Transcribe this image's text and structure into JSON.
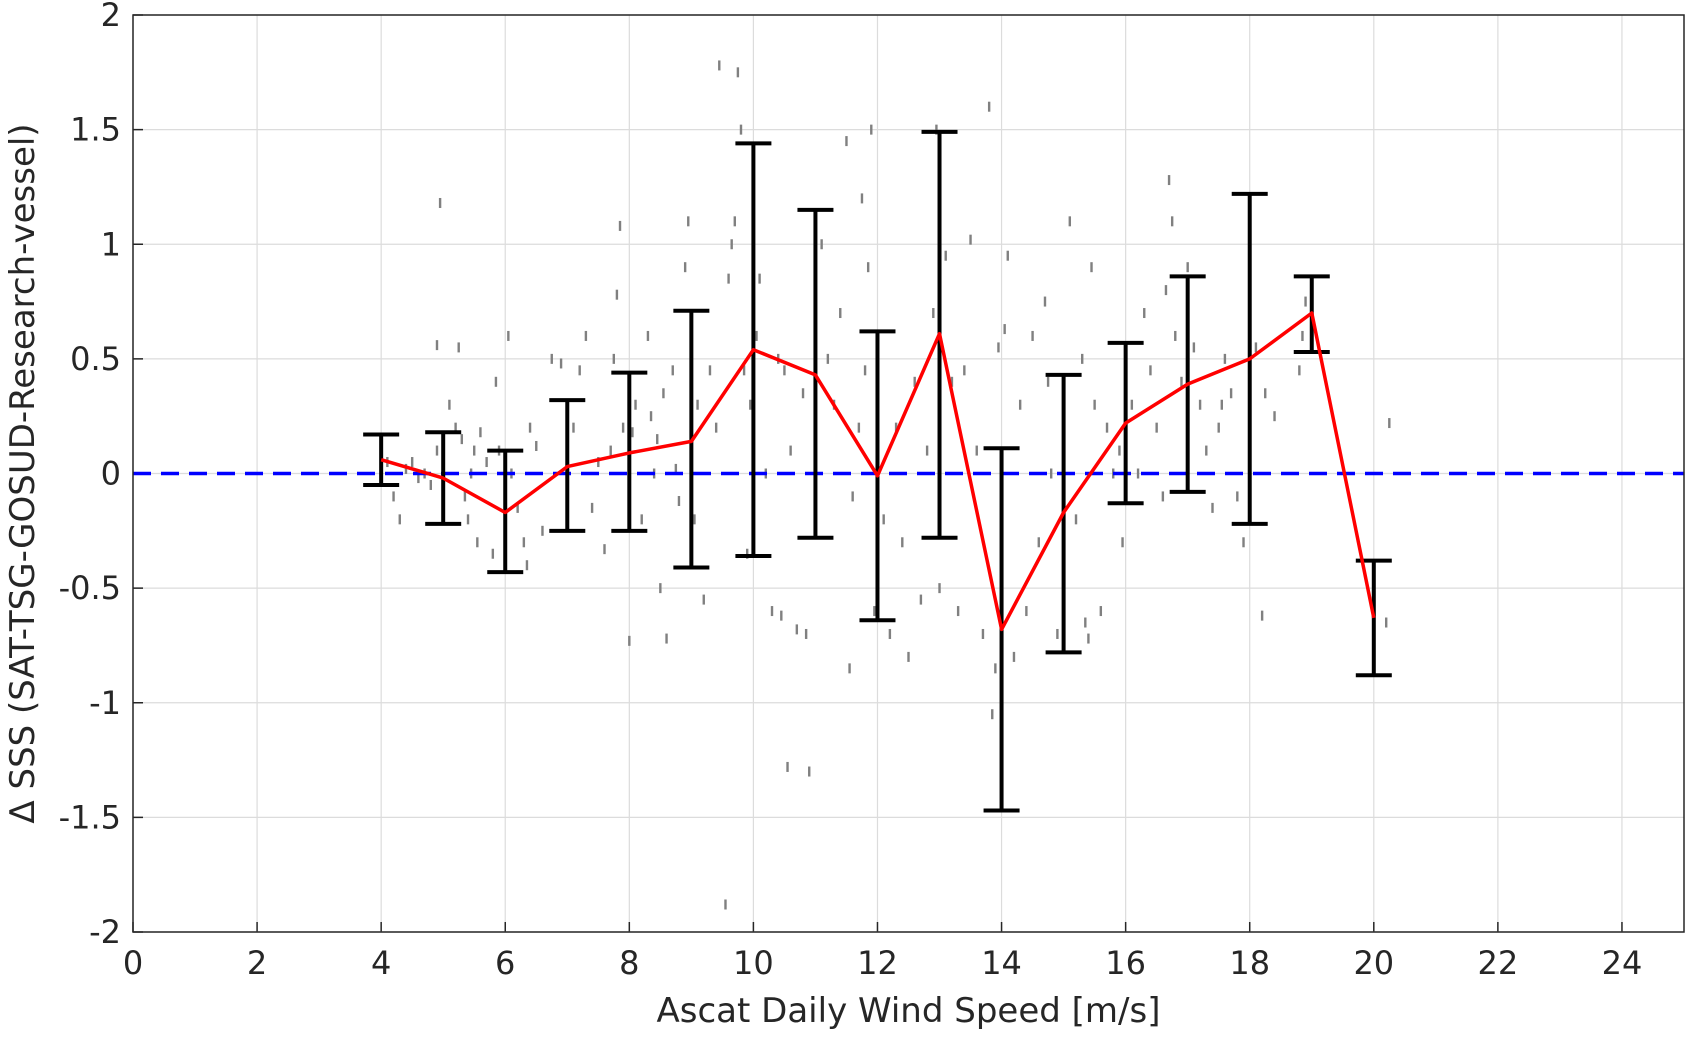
{
  "chart_data": {
    "type": "line",
    "xlabel": "Ascat Daily Wind Speed [m/s]",
    "ylabel": "Δ SSS (SAT-TSG-GOSUD-Research-vessel)",
    "xlim": [
      0,
      25
    ],
    "ylim": [
      -2,
      2
    ],
    "xticks": [
      0,
      2,
      4,
      6,
      8,
      10,
      12,
      14,
      16,
      18,
      20,
      22,
      24
    ],
    "yticks": [
      -2,
      -1.5,
      -1,
      -0.5,
      0,
      0.5,
      1,
      1.5,
      2
    ],
    "ytick_labels": [
      "-2",
      "-1.5",
      "-1",
      "-0.5",
      "0",
      "0.5",
      "1",
      "1.5",
      "2"
    ],
    "grid": true,
    "colors": {
      "scatter": "#808080",
      "mean": "#ff0000",
      "errorbar": "#000000",
      "zero_line": "#0000ff"
    },
    "series": [
      {
        "type": "errorbar-line",
        "x": [
          4,
          5,
          6,
          7,
          8,
          9,
          10,
          11,
          12,
          13,
          14,
          15,
          16,
          17,
          18,
          19,
          20
        ],
        "mean": [
          0.06,
          -0.02,
          -0.17,
          0.03,
          0.09,
          0.14,
          0.54,
          0.43,
          -0.01,
          0.61,
          -0.68,
          -0.17,
          0.22,
          0.39,
          0.5,
          0.7,
          -0.63
        ],
        "lower": [
          -0.05,
          -0.22,
          -0.43,
          -0.25,
          -0.25,
          -0.41,
          -0.36,
          -0.28,
          -0.64,
          -0.28,
          -1.47,
          -0.78,
          -0.13,
          -0.08,
          -0.22,
          0.53,
          -0.88
        ],
        "upper": [
          0.17,
          0.18,
          0.1,
          0.32,
          0.44,
          0.71,
          1.44,
          1.15,
          0.62,
          1.49,
          0.11,
          0.43,
          0.57,
          0.86,
          1.22,
          0.86,
          -0.38
        ]
      },
      {
        "type": "reference-line",
        "y": 0
      },
      {
        "type": "scatter",
        "points": [
          [
            4.1,
            0.05
          ],
          [
            4.2,
            -0.1
          ],
          [
            4.3,
            -0.2
          ],
          [
            4.4,
            0.02
          ],
          [
            4.5,
            0.05
          ],
          [
            4.6,
            -0.02
          ],
          [
            4.7,
            0.0
          ],
          [
            4.8,
            -0.05
          ],
          [
            4.9,
            0.1
          ],
          [
            4.95,
            1.18
          ],
          [
            4.9,
            0.56
          ],
          [
            5.1,
            0.3
          ],
          [
            5.2,
            0.2
          ],
          [
            5.25,
            0.55
          ],
          [
            5.3,
            0.15
          ],
          [
            5.35,
            -0.1
          ],
          [
            5.4,
            -0.2
          ],
          [
            5.45,
            0.0
          ],
          [
            5.5,
            0.1
          ],
          [
            5.55,
            -0.3
          ],
          [
            5.6,
            0.18
          ],
          [
            5.7,
            0.05
          ],
          [
            5.8,
            -0.35
          ],
          [
            5.85,
            0.4
          ],
          [
            5.9,
            0.1
          ],
          [
            6.05,
            0.6
          ],
          [
            6.1,
            0.0
          ],
          [
            6.2,
            -0.15
          ],
          [
            6.3,
            -0.3
          ],
          [
            6.35,
            -0.4
          ],
          [
            6.4,
            0.2
          ],
          [
            6.5,
            0.12
          ],
          [
            6.6,
            -0.25
          ],
          [
            6.75,
            0.5
          ],
          [
            6.9,
            0.48
          ],
          [
            7.0,
            -0.1
          ],
          [
            7.1,
            0.2
          ],
          [
            7.2,
            0.45
          ],
          [
            7.3,
            0.6
          ],
          [
            7.4,
            -0.15
          ],
          [
            7.5,
            0.05
          ],
          [
            7.6,
            -0.33
          ],
          [
            7.7,
            0.1
          ],
          [
            7.75,
            0.5
          ],
          [
            7.8,
            0.78
          ],
          [
            7.85,
            1.08
          ],
          [
            7.9,
            0.2
          ],
          [
            8.0,
            -0.73
          ],
          [
            8.05,
            0.18
          ],
          [
            8.1,
            0.3
          ],
          [
            8.2,
            -0.2
          ],
          [
            8.3,
            0.6
          ],
          [
            8.35,
            0.25
          ],
          [
            8.4,
            0.0
          ],
          [
            8.45,
            0.15
          ],
          [
            8.5,
            -0.5
          ],
          [
            8.55,
            0.35
          ],
          [
            8.6,
            -0.72
          ],
          [
            8.7,
            0.45
          ],
          [
            8.75,
            0.02
          ],
          [
            8.8,
            -0.12
          ],
          [
            8.9,
            0.9
          ],
          [
            8.95,
            1.1
          ],
          [
            9.0,
            0.6
          ],
          [
            9.05,
            -0.2
          ],
          [
            9.1,
            0.3
          ],
          [
            9.2,
            -0.55
          ],
          [
            9.3,
            0.45
          ],
          [
            9.4,
            0.2
          ],
          [
            9.45,
            1.78
          ],
          [
            9.55,
            -1.88
          ],
          [
            9.6,
            0.85
          ],
          [
            9.65,
            1.0
          ],
          [
            9.7,
            1.1
          ],
          [
            9.75,
            1.75
          ],
          [
            9.8,
            1.5
          ],
          [
            9.85,
            0.45
          ],
          [
            9.9,
            -0.35
          ],
          [
            9.95,
            0.3
          ],
          [
            10.0,
            0.3
          ],
          [
            10.05,
            0.6
          ],
          [
            10.1,
            0.85
          ],
          [
            10.2,
            0.0
          ],
          [
            10.3,
            -0.6
          ],
          [
            10.4,
            0.5
          ],
          [
            10.45,
            -0.62
          ],
          [
            10.5,
            0.45
          ],
          [
            10.55,
            -1.28
          ],
          [
            10.6,
            0.1
          ],
          [
            10.7,
            -0.68
          ],
          [
            10.8,
            0.35
          ],
          [
            10.85,
            -0.7
          ],
          [
            10.9,
            -1.3
          ],
          [
            11.0,
            0.1
          ],
          [
            11.1,
            1.0
          ],
          [
            11.2,
            0.5
          ],
          [
            11.3,
            0.3
          ],
          [
            11.4,
            0.7
          ],
          [
            11.5,
            1.45
          ],
          [
            11.55,
            -0.85
          ],
          [
            11.6,
            -0.1
          ],
          [
            11.7,
            0.2
          ],
          [
            11.75,
            1.2
          ],
          [
            11.8,
            0.45
          ],
          [
            11.85,
            0.9
          ],
          [
            11.9,
            1.5
          ],
          [
            11.95,
            -0.6
          ],
          [
            12.0,
            0.55
          ],
          [
            12.1,
            -0.2
          ],
          [
            12.2,
            -0.7
          ],
          [
            12.3,
            0.2
          ],
          [
            12.4,
            -0.3
          ],
          [
            12.5,
            -0.8
          ],
          [
            12.6,
            0.4
          ],
          [
            12.7,
            -0.55
          ],
          [
            12.8,
            0.1
          ],
          [
            12.9,
            0.7
          ],
          [
            12.95,
            1.5
          ],
          [
            13.0,
            -0.5
          ],
          [
            13.1,
            0.95
          ],
          [
            13.2,
            0.4
          ],
          [
            13.3,
            -0.6
          ],
          [
            13.4,
            0.45
          ],
          [
            13.5,
            1.02
          ],
          [
            13.6,
            0.1
          ],
          [
            13.7,
            -0.7
          ],
          [
            13.8,
            1.6
          ],
          [
            13.85,
            -1.05
          ],
          [
            13.9,
            -0.85
          ],
          [
            13.95,
            0.55
          ],
          [
            14.0,
            -1.2
          ],
          [
            14.05,
            0.63
          ],
          [
            14.1,
            0.95
          ],
          [
            14.2,
            -0.8
          ],
          [
            14.3,
            0.3
          ],
          [
            14.4,
            -0.6
          ],
          [
            14.5,
            0.6
          ],
          [
            14.6,
            -0.3
          ],
          [
            14.7,
            0.75
          ],
          [
            14.75,
            0.4
          ],
          [
            14.8,
            0.0
          ],
          [
            14.9,
            -0.7
          ],
          [
            15.0,
            0.15
          ],
          [
            15.1,
            1.1
          ],
          [
            15.2,
            -0.2
          ],
          [
            15.3,
            0.5
          ],
          [
            15.35,
            -0.65
          ],
          [
            15.4,
            -0.72
          ],
          [
            15.45,
            0.9
          ],
          [
            15.5,
            0.3
          ],
          [
            15.6,
            -0.6
          ],
          [
            15.7,
            0.2
          ],
          [
            15.8,
            0.0
          ],
          [
            15.9,
            0.1
          ],
          [
            15.95,
            -0.3
          ],
          [
            16.0,
            0.55
          ],
          [
            16.1,
            0.3
          ],
          [
            16.2,
            0.0
          ],
          [
            16.3,
            0.7
          ],
          [
            16.4,
            0.45
          ],
          [
            16.5,
            0.2
          ],
          [
            16.6,
            -0.1
          ],
          [
            16.65,
            0.8
          ],
          [
            16.7,
            1.28
          ],
          [
            16.75,
            1.1
          ],
          [
            16.8,
            0.6
          ],
          [
            16.9,
            0.4
          ],
          [
            17.0,
            0.9
          ],
          [
            17.1,
            0.55
          ],
          [
            17.2,
            0.3
          ],
          [
            17.3,
            0.1
          ],
          [
            17.4,
            -0.15
          ],
          [
            17.5,
            0.2
          ],
          [
            17.55,
            0.3
          ],
          [
            17.6,
            0.5
          ],
          [
            17.7,
            0.35
          ],
          [
            17.8,
            -0.1
          ],
          [
            17.9,
            -0.3
          ],
          [
            18.0,
            0.2
          ],
          [
            18.1,
            0.55
          ],
          [
            18.2,
            -0.62
          ],
          [
            18.25,
            0.35
          ],
          [
            18.4,
            0.25
          ],
          [
            18.8,
            0.45
          ],
          [
            18.85,
            0.6
          ],
          [
            18.9,
            0.75
          ],
          [
            19.0,
            0.65
          ],
          [
            20.2,
            -0.65
          ],
          [
            20.25,
            0.22
          ]
        ]
      }
    ]
  }
}
